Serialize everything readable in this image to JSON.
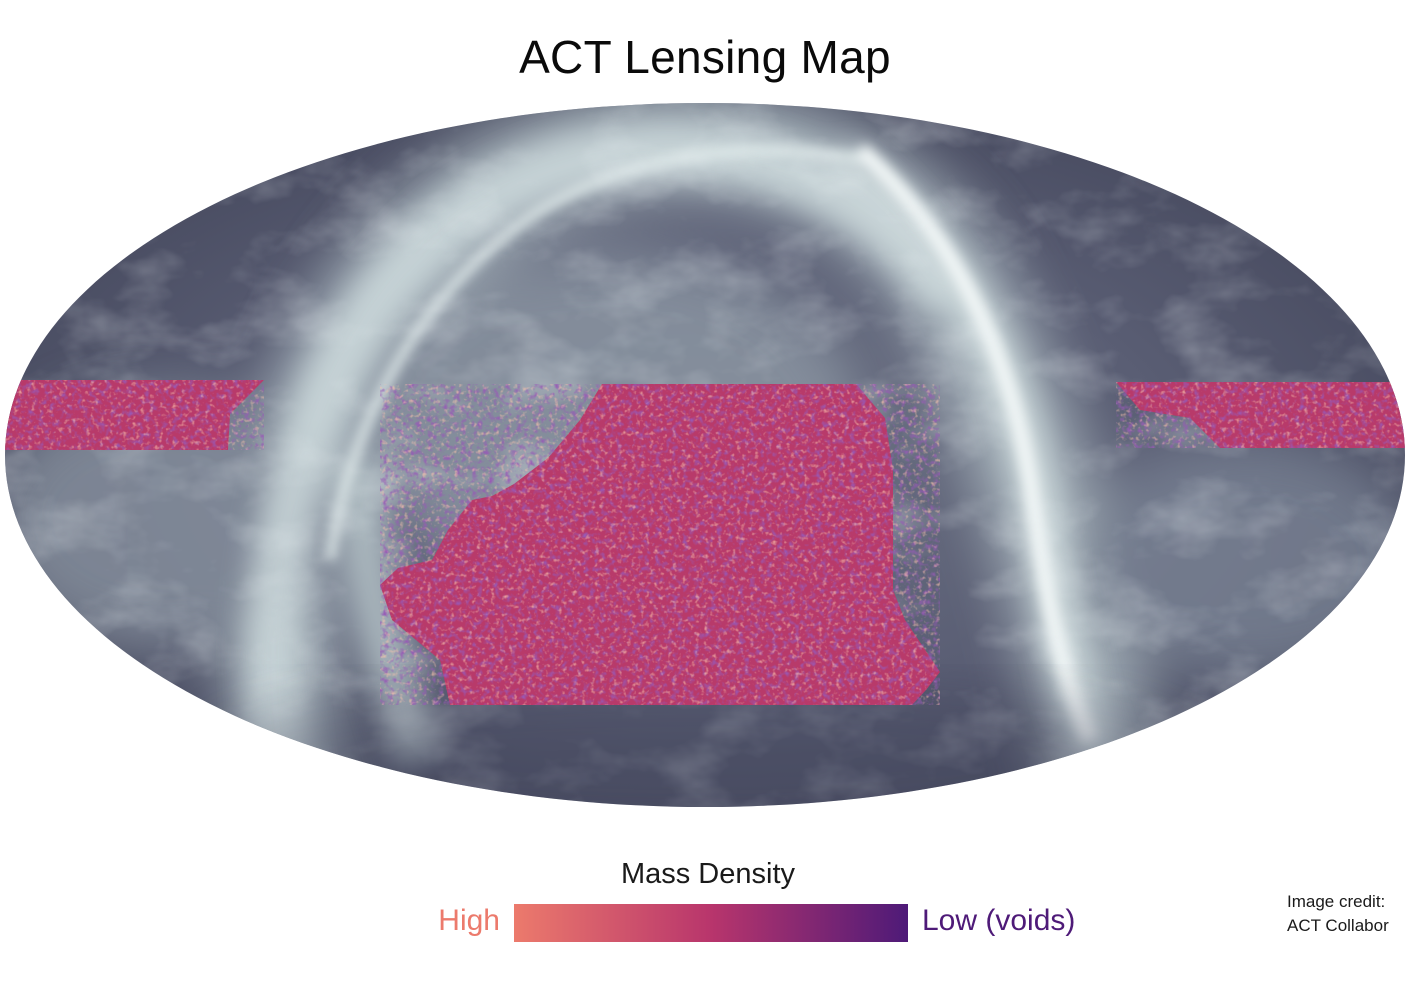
{
  "title": "ACT Lensing Map",
  "legend": {
    "title": "Mass Density",
    "high_label": "High",
    "low_label": "Low (voids)",
    "high_color": "#ec7a6c",
    "mid_color": "#b8356c",
    "low_color": "#4e1a78"
  },
  "credit": {
    "line1": "Image credit:",
    "line2": "ACT Collabor"
  },
  "colors": {
    "sky_dark": "#4a4d62",
    "sky_light": "#dde8ea",
    "patch_base": "#b83a6a"
  }
}
